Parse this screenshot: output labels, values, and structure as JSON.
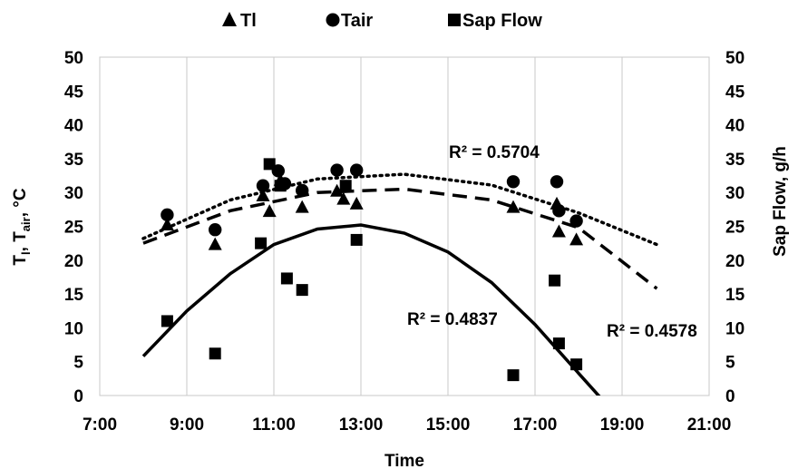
{
  "chart_data": {
    "type": "scatter",
    "xlabel": "Time",
    "ylabel_left": {
      "base": "T",
      "sub1": "l",
      "mid": ", T",
      "sub2": "air",
      "end": ", °C"
    },
    "ylabel_right": "Sap Flow, g/h",
    "x_ticks": [
      "7:00",
      "9:00",
      "11:00",
      "13:00",
      "15:00",
      "17:00",
      "19:00",
      "21:00"
    ],
    "x_tick_values": [
      7,
      9,
      11,
      13,
      15,
      17,
      19,
      21
    ],
    "xlim": [
      7,
      21
    ],
    "y_ticks": [
      "0",
      "5",
      "10",
      "15",
      "20",
      "25",
      "30",
      "35",
      "40",
      "45",
      "50"
    ],
    "y_tick_values": [
      0,
      5,
      10,
      15,
      20,
      25,
      30,
      35,
      40,
      45,
      50
    ],
    "ylim": [
      0,
      50
    ],
    "y2lim": [
      0,
      50
    ],
    "grid": "vertical",
    "legend_position": "top",
    "series": [
      {
        "name": "Tl",
        "marker": "triangle",
        "points": [
          [
            8.55,
            25.2
          ],
          [
            9.65,
            22.3
          ],
          [
            10.75,
            29.5
          ],
          [
            10.9,
            27.2
          ],
          [
            11.15,
            31.8
          ],
          [
            11.65,
            27.8
          ],
          [
            12.45,
            30.2
          ],
          [
            12.6,
            29.0
          ],
          [
            12.9,
            28.3
          ],
          [
            16.5,
            27.8
          ],
          [
            17.5,
            28.3
          ],
          [
            17.55,
            24.2
          ],
          [
            17.95,
            23.0
          ]
        ]
      },
      {
        "name": "Tair",
        "marker": "circle",
        "points": [
          [
            8.55,
            26.7
          ],
          [
            9.65,
            24.5
          ],
          [
            10.75,
            31.0
          ],
          [
            11.1,
            33.2
          ],
          [
            11.25,
            31.3
          ],
          [
            11.65,
            30.3
          ],
          [
            12.45,
            33.3
          ],
          [
            12.9,
            33.3
          ],
          [
            16.5,
            31.6
          ],
          [
            17.5,
            31.6
          ],
          [
            17.55,
            27.3
          ],
          [
            17.95,
            25.8
          ]
        ]
      },
      {
        "name": "Sap Flow",
        "marker": "square",
        "axis": "right",
        "points": [
          [
            8.55,
            11.0
          ],
          [
            9.65,
            6.2
          ],
          [
            10.7,
            22.5
          ],
          [
            10.9,
            34.2
          ],
          [
            11.15,
            31.0
          ],
          [
            11.3,
            17.3
          ],
          [
            11.65,
            15.6
          ],
          [
            12.65,
            31.0
          ],
          [
            12.9,
            23.0
          ],
          [
            16.5,
            3.0
          ],
          [
            17.45,
            17.0
          ],
          [
            17.55,
            7.7
          ],
          [
            17.95,
            4.6
          ]
        ]
      }
    ],
    "trendlines": [
      {
        "series": "Tair",
        "style": "dotted",
        "r2_label": "R² = 0.5704",
        "points": [
          [
            8,
            23.2
          ],
          [
            10,
            28.9
          ],
          [
            12,
            32.0
          ],
          [
            14,
            32.7
          ],
          [
            16,
            31.1
          ],
          [
            18,
            27.0
          ],
          [
            19.8,
            22.3
          ]
        ]
      },
      {
        "series": "Tl",
        "style": "dashed",
        "r2_label": "R² = 0.4578",
        "points": [
          [
            8,
            22.5
          ],
          [
            10,
            27.3
          ],
          [
            12,
            30.0
          ],
          [
            14,
            30.5
          ],
          [
            16,
            28.9
          ],
          [
            18,
            24.8
          ],
          [
            19.8,
            15.8
          ]
        ]
      },
      {
        "series": "Sap Flow",
        "style": "solid",
        "r2_label": "R² = 0.4837",
        "points": [
          [
            8,
            5.8
          ],
          [
            9,
            12.5
          ],
          [
            10,
            18.0
          ],
          [
            11,
            22.3
          ],
          [
            12,
            24.6
          ],
          [
            13,
            25.2
          ],
          [
            14,
            24.0
          ],
          [
            15,
            21.2
          ],
          [
            16,
            16.7
          ],
          [
            17,
            10.5
          ],
          [
            18,
            3.3
          ],
          [
            18.6,
            -1.0
          ]
        ]
      }
    ]
  }
}
